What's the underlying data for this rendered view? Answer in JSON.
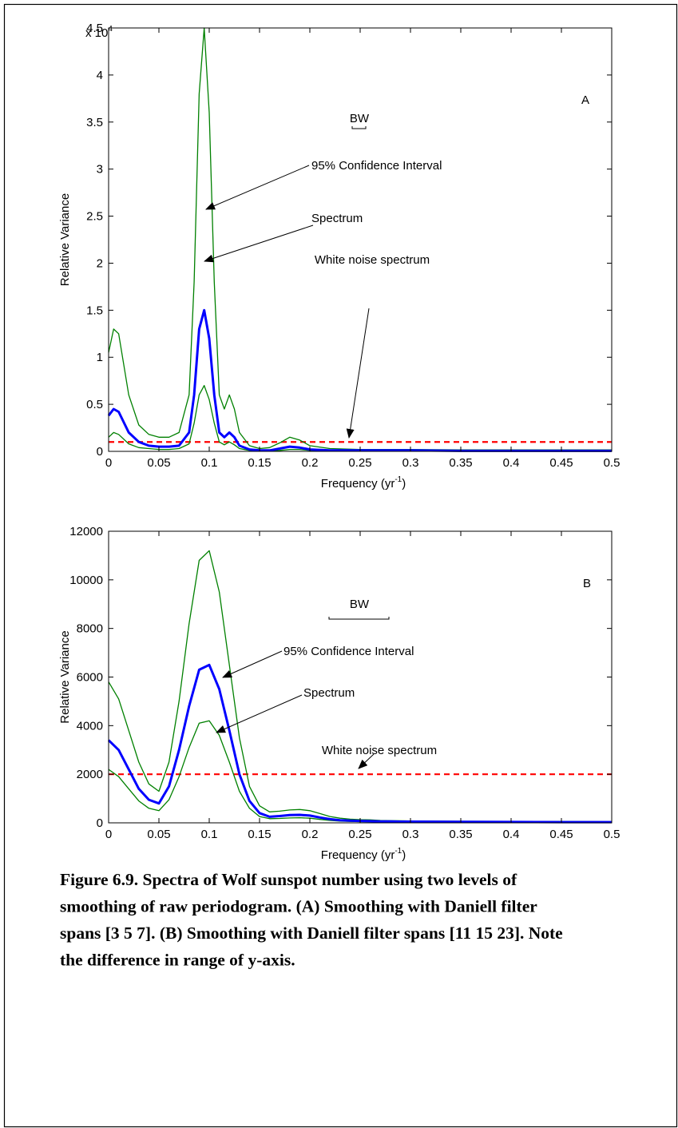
{
  "chart_data": [
    {
      "type": "line",
      "panel_label": "A",
      "y_multiplier": "x 10",
      "y_multiplier_exponent": "4",
      "ylabel": "Relative Variance",
      "xlabel": {
        "text": "Frequency (yr",
        "sup": "-1",
        "close": ")"
      },
      "annotations": [
        "BW",
        "95% Confidence Interval",
        "Spectrum",
        "White noise spectrum"
      ],
      "x": [
        0,
        0.005,
        0.01,
        0.02,
        0.03,
        0.04,
        0.05,
        0.06,
        0.07,
        0.08,
        0.085,
        0.09,
        0.095,
        0.1,
        0.105,
        0.11,
        0.115,
        0.12,
        0.125,
        0.13,
        0.14,
        0.15,
        0.16,
        0.17,
        0.18,
        0.19,
        0.2,
        0.22,
        0.25,
        0.3,
        0.35,
        0.4,
        0.45,
        0.5
      ],
      "series": [
        {
          "color": "#008000",
          "values": [
            1.05,
            1.3,
            1.25,
            0.6,
            0.28,
            0.18,
            0.15,
            0.15,
            0.2,
            0.6,
            1.8,
            3.8,
            4.5,
            3.6,
            1.8,
            0.6,
            0.45,
            0.6,
            0.45,
            0.2,
            0.06,
            0.03,
            0.04,
            0.09,
            0.15,
            0.12,
            0.06,
            0.03,
            0.02,
            0.02,
            0.015,
            0.015,
            0.015,
            0.015
          ]
        },
        {
          "color": "#008000",
          "values": [
            0.15,
            0.2,
            0.18,
            0.08,
            0.04,
            0.03,
            0.02,
            0.02,
            0.03,
            0.08,
            0.3,
            0.6,
            0.7,
            0.55,
            0.3,
            0.1,
            0.07,
            0.1,
            0.07,
            0.03,
            0.01,
            0.005,
            0.005,
            0.01,
            0.02,
            0.02,
            0.01,
            0.005,
            0.005,
            0.003,
            0.002,
            0.002,
            0.002,
            0.002
          ]
        },
        {
          "color": "#0000ff",
          "values": [
            0.38,
            0.45,
            0.42,
            0.2,
            0.1,
            0.06,
            0.05,
            0.05,
            0.06,
            0.2,
            0.6,
            1.3,
            1.5,
            1.2,
            0.6,
            0.2,
            0.15,
            0.2,
            0.15,
            0.06,
            0.02,
            0.01,
            0.01,
            0.03,
            0.05,
            0.04,
            0.02,
            0.01,
            0.01,
            0.01,
            0.005,
            0.005,
            0.005,
            0.005
          ]
        }
      ],
      "hline": {
        "value": 0.1,
        "color": "#ff0000"
      },
      "xlim": [
        0,
        0.5
      ],
      "xticks": [
        0,
        0.05,
        0.1,
        0.15,
        0.2,
        0.25,
        0.3,
        0.35,
        0.4,
        0.45,
        0.5
      ],
      "ylim": [
        0,
        4.5
      ],
      "yticks": [
        0,
        0.5,
        1,
        1.5,
        2,
        2.5,
        3,
        3.5,
        4,
        4.5
      ]
    },
    {
      "type": "line",
      "panel_label": "B",
      "ylabel": "Relative Variance",
      "xlabel": {
        "text": "Frequency (yr",
        "sup": "-1",
        "close": ")"
      },
      "annotations": [
        "BW",
        "95% Confidence Interval",
        "Spectrum",
        "White noise spectrum"
      ],
      "x": [
        0,
        0.01,
        0.02,
        0.03,
        0.04,
        0.05,
        0.06,
        0.07,
        0.08,
        0.09,
        0.1,
        0.11,
        0.12,
        0.13,
        0.14,
        0.15,
        0.16,
        0.17,
        0.18,
        0.19,
        0.2,
        0.21,
        0.22,
        0.23,
        0.24,
        0.25,
        0.26,
        0.27,
        0.28,
        0.29,
        0.3,
        0.35,
        0.4,
        0.45,
        0.5
      ],
      "series": [
        {
          "color": "#008000",
          "values": [
            5800,
            5100,
            3800,
            2500,
            1600,
            1300,
            2500,
            5000,
            8200,
            10800,
            11200,
            9500,
            6500,
            3500,
            1500,
            700,
            450,
            480,
            530,
            550,
            500,
            380,
            260,
            190,
            150,
            130,
            120,
            100,
            90,
            85,
            80,
            65,
            60,
            55,
            50
          ]
        },
        {
          "color": "#008000",
          "values": [
            2200,
            1900,
            1400,
            900,
            600,
            500,
            950,
            1900,
            3100,
            4100,
            4200,
            3600,
            2500,
            1300,
            600,
            260,
            170,
            180,
            200,
            210,
            190,
            140,
            100,
            70,
            60,
            50,
            45,
            40,
            35,
            32,
            30,
            25,
            22,
            20,
            20
          ]
        },
        {
          "color": "#0000ff",
          "values": [
            3400,
            3000,
            2200,
            1400,
            950,
            800,
            1500,
            3000,
            4800,
            6300,
            6500,
            5500,
            3800,
            2000,
            900,
            400,
            250,
            280,
            320,
            330,
            300,
            220,
            150,
            110,
            90,
            80,
            70,
            60,
            55,
            50,
            50,
            40,
            35,
            30,
            30
          ]
        }
      ],
      "hline": {
        "value": 2000,
        "color": "#ff0000"
      },
      "xlim": [
        0,
        0.5
      ],
      "xticks": [
        0,
        0.05,
        0.1,
        0.15,
        0.2,
        0.25,
        0.3,
        0.35,
        0.4,
        0.45,
        0.5
      ],
      "ylim": [
        0,
        12000
      ],
      "yticks": [
        0,
        2000,
        4000,
        6000,
        8000,
        10000,
        12000
      ]
    }
  ],
  "caption": [
    "Figure 6.9.  Spectra of Wolf sunspot number using two levels of",
    "smoothing of raw periodogram.  (A) Smoothing with Daniell filter",
    "spans [3 5 7]. (B) Smoothing with Daniell filter spans [11 15 23].  Note",
    "the difference in range of y-axis."
  ]
}
